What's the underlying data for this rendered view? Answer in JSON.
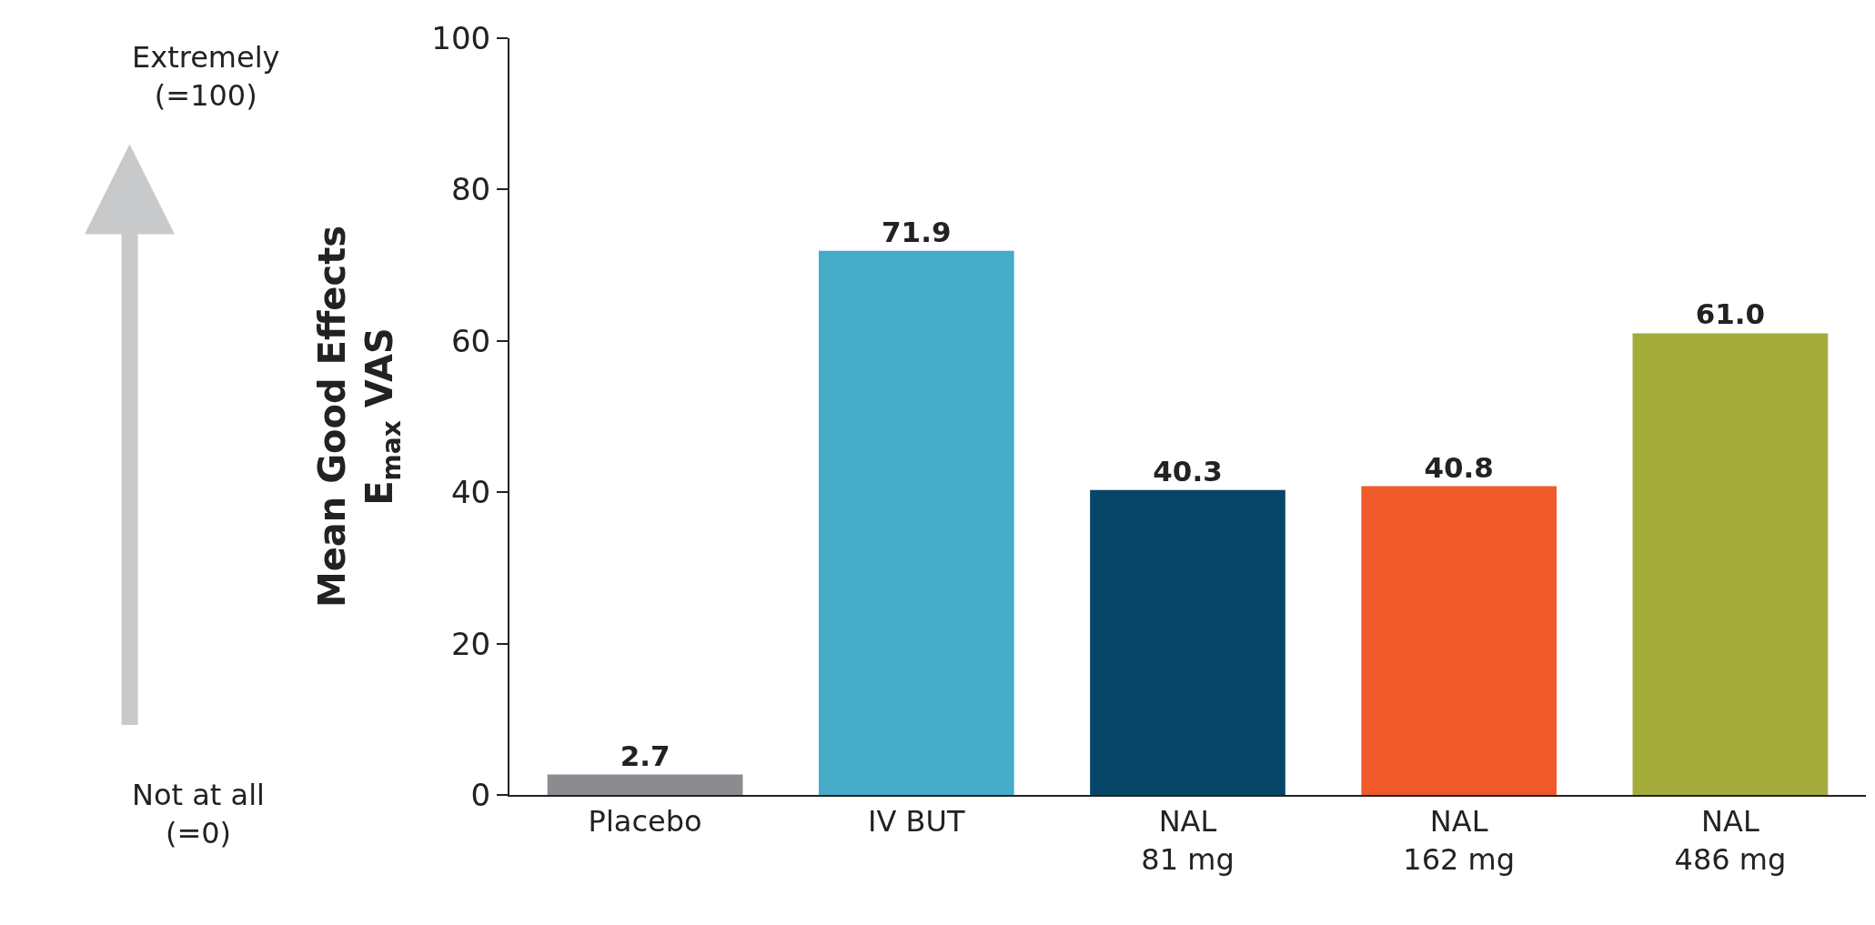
{
  "chart_data": {
    "type": "bar",
    "ylabel": "Mean Good Effects\nE$_{max}$ VAS",
    "categories": [
      "Placebo",
      "IV BUT",
      "NAL\n81 mg",
      "NAL\n162 mg",
      "NAL\n486 mg"
    ],
    "values": [
      2.7,
      71.9,
      40.3,
      40.8,
      61.0
    ],
    "value_labels": [
      "2.7",
      "71.9",
      "40.3",
      "40.8",
      "61.0"
    ],
    "colors": [
      "#8c8c90",
      "#45abc9",
      "#074568",
      "#f05a2b",
      "#a3ab3a"
    ],
    "ylim": [
      0,
      100
    ],
    "yticks": [
      0,
      20,
      40,
      60,
      80,
      100
    ],
    "annotations": [
      "Extremely\n(=100)",
      "Not at all\n(=0)"
    ]
  }
}
